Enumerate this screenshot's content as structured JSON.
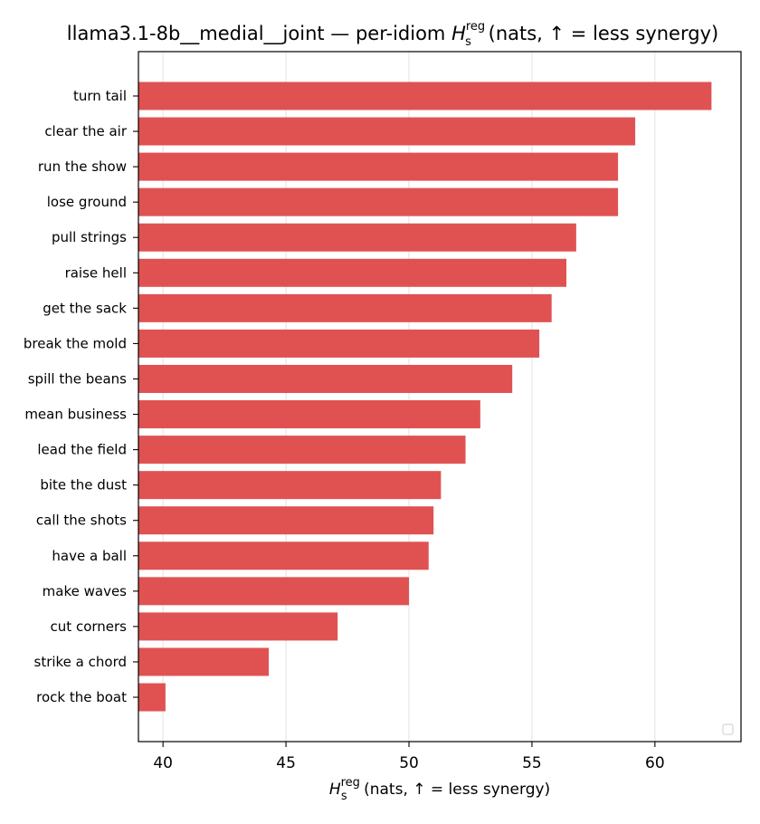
{
  "chart_data": {
    "type": "bar",
    "orientation": "horizontal",
    "title": {
      "prefix": "llama3.1-8b__medial__joint — per-idiom ",
      "symbol": "H",
      "subscript": "s",
      "superscript": "reg",
      "suffix": " (nats, ↑ = less synergy)"
    },
    "xlabel": {
      "symbol": "H",
      "subscript": "s",
      "superscript": "reg",
      "suffix": " (nats, ↑ = less synergy)"
    },
    "ylabel": "",
    "categories": [
      "turn tail",
      "clear the air",
      "run the show",
      "lose ground",
      "pull strings",
      "raise hell",
      "get the sack",
      "break the mold",
      "spill the beans",
      "mean business",
      "lead the field",
      "bite the dust",
      "call the shots",
      "have a ball",
      "make waves",
      "cut corners",
      "strike a chord",
      "rock the boat"
    ],
    "values": [
      62.3,
      59.2,
      58.5,
      58.5,
      56.8,
      56.4,
      55.8,
      55.3,
      54.2,
      52.9,
      52.3,
      51.3,
      51.0,
      50.8,
      50.0,
      47.1,
      44.3,
      40.1
    ],
    "xlim": [
      39.0,
      63.5
    ],
    "xticks": [
      "40",
      "45",
      "50",
      "55",
      "60"
    ],
    "xtick_values": [
      40,
      45,
      50,
      55,
      60
    ],
    "bar_color": "#e05252",
    "grid": "vertical",
    "grid_color": "#e6e6e6",
    "legend": "lower-right"
  }
}
